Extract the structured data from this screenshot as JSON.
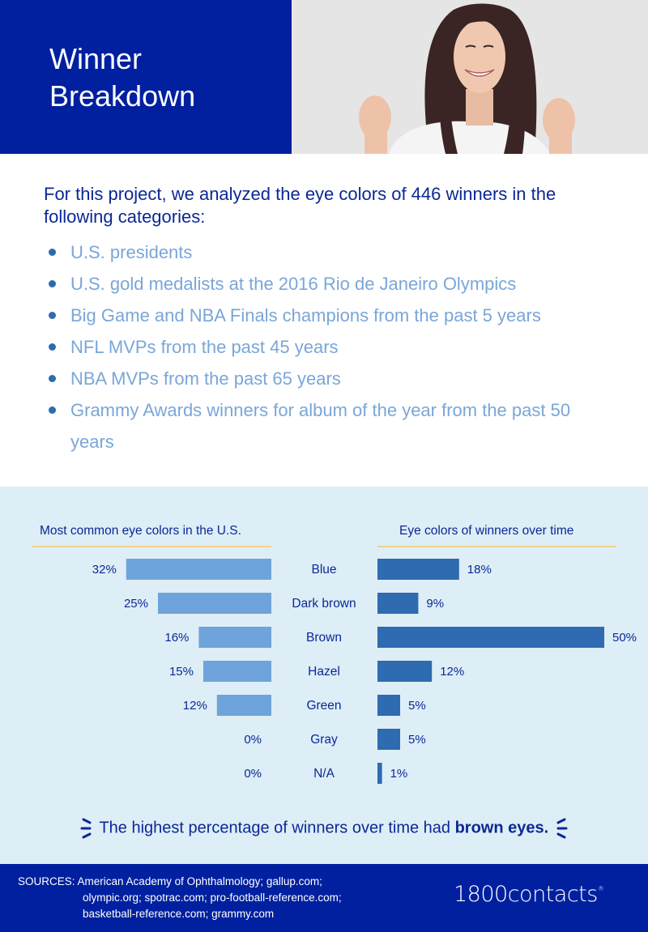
{
  "hero": {
    "title_line1": "Winner",
    "title_line2": "Breakdown",
    "photo_alt": "Excited woman with clenched fists celebrating"
  },
  "intro": {
    "text": "For this project, we analyzed the eye colors of 446 winners in the following categories:",
    "categories": [
      "U.S. presidents",
      "U.S. gold medalists at the 2016 Rio de Janeiro Olympics",
      "Big Game and NBA Finals champions from the past 5 years",
      "NFL MVPs from the past 45 years",
      "NBA MVPs from the past 65 years",
      "Grammy Awards winners for album of the year from the past 50 years"
    ]
  },
  "colors": {
    "brand_blue": "#0020a0",
    "left_bar": "#6fa3db",
    "right_bar": "#2e6bb0",
    "chart_bg": "#ddeef6",
    "rule": "#eed48a",
    "text_blue": "#0b2896"
  },
  "chart_data": {
    "type": "bar",
    "orientation": "horizontal-butterfly",
    "categories": [
      "Blue",
      "Dark brown",
      "Brown",
      "Hazel",
      "Green",
      "Gray",
      "N/A"
    ],
    "series": [
      {
        "name": "Most common eye colors in the U.S.",
        "values": [
          32,
          25,
          16,
          15,
          12,
          0,
          0
        ],
        "labels": [
          "32%",
          "25%",
          "16%",
          "15%",
          "12%",
          "0%",
          "0%"
        ],
        "direction": "left"
      },
      {
        "name": "Eye colors of winners over time",
        "values": [
          18,
          9,
          50,
          12,
          5,
          5,
          1
        ],
        "labels": [
          "18%",
          "9%",
          "50%",
          "12%",
          "5%",
          "5%",
          "1%"
        ],
        "direction": "right"
      }
    ],
    "unit": "%",
    "xlim": [
      0,
      50
    ],
    "grid": false,
    "legend": "none"
  },
  "takeaway": {
    "prefix": "The highest percentage of winners over time had ",
    "emphasis": "brown eyes."
  },
  "footer": {
    "sources_label": "SOURCES:",
    "sources_line1": "American Academy of Ophthalmology; gallup.com;",
    "sources_line2": "olympic.org; spotrac.com; pro-football-reference.com;",
    "sources_line3": "basketball-reference.com; grammy.com",
    "logo_text": "1800contacts",
    "logo_mark": "®"
  }
}
